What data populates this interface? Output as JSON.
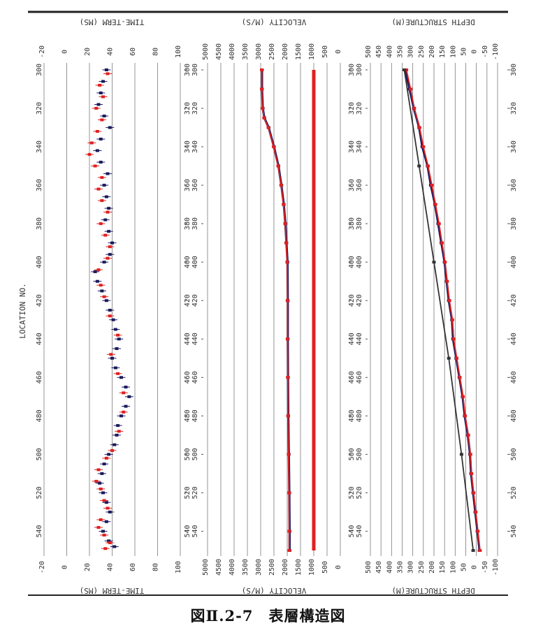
{
  "caption": "図Ⅱ.2-7　表層構造図",
  "chart_data": {
    "type": "multi-panel profile",
    "location_axis": {
      "label": "LOCATION NO.",
      "range": [
        300,
        550
      ],
      "ticks": [
        300,
        320,
        340,
        360,
        380,
        400,
        420,
        440,
        460,
        480,
        500,
        520,
        540
      ]
    },
    "panels": [
      {
        "id": "time_term",
        "title": "TIME-TERM (MS)",
        "range": [
          -20,
          100
        ],
        "ticks": [
          -20,
          0,
          20,
          40,
          60,
          80,
          100
        ],
        "series": [
          {
            "color": "#1a1a5e",
            "points": [
              [
                300,
                35
              ],
              [
                306,
                32
              ],
              [
                312,
                30
              ],
              [
                318,
                28
              ],
              [
                324,
                33
              ],
              [
                330,
                38
              ],
              [
                336,
                30
              ],
              [
                342,
                27
              ],
              [
                348,
                30
              ],
              [
                354,
                36
              ],
              [
                360,
                33
              ],
              [
                366,
                35
              ],
              [
                372,
                37
              ],
              [
                378,
                34
              ],
              [
                384,
                37
              ],
              [
                390,
                40
              ],
              [
                396,
                38
              ],
              [
                400,
                33
              ],
              [
                405,
                25
              ],
              [
                410,
                27
              ],
              [
                415,
                31
              ],
              [
                420,
                35
              ],
              [
                425,
                38
              ],
              [
                430,
                41
              ],
              [
                435,
                43
              ],
              [
                440,
                46
              ],
              [
                445,
                44
              ],
              [
                450,
                40
              ],
              [
                455,
                43
              ],
              [
                460,
                48
              ],
              [
                465,
                52
              ],
              [
                470,
                55
              ],
              [
                475,
                52
              ],
              [
                480,
                48
              ],
              [
                485,
                45
              ],
              [
                490,
                44
              ],
              [
                495,
                42
              ],
              [
                500,
                37
              ],
              [
                505,
                33
              ],
              [
                510,
                31
              ],
              [
                515,
                29
              ],
              [
                520,
                32
              ],
              [
                525,
                35
              ],
              [
                530,
                38
              ],
              [
                535,
                35
              ],
              [
                540,
                32
              ],
              [
                545,
                37
              ],
              [
                548,
                42
              ]
            ]
          },
          {
            "color": "#e02020",
            "points": [
              [
                302,
                36
              ],
              [
                308,
                29
              ],
              [
                314,
                32
              ],
              [
                320,
                26
              ],
              [
                326,
                31
              ],
              [
                332,
                27
              ],
              [
                338,
                22
              ],
              [
                344,
                20
              ],
              [
                350,
                25
              ],
              [
                356,
                31
              ],
              [
                362,
                28
              ],
              [
                368,
                31
              ],
              [
                374,
                36
              ],
              [
                380,
                30
              ],
              [
                386,
                34
              ],
              [
                392,
                38
              ],
              [
                398,
                36
              ],
              [
                404,
                28
              ],
              [
                412,
                30
              ],
              [
                418,
                33
              ],
              [
                428,
                38
              ],
              [
                438,
                45
              ],
              [
                448,
                39
              ],
              [
                458,
                45
              ],
              [
                468,
                50
              ],
              [
                478,
                50
              ],
              [
                488,
                46
              ],
              [
                498,
                40
              ],
              [
                502,
                35
              ],
              [
                508,
                28
              ],
              [
                514,
                26
              ],
              [
                518,
                30
              ],
              [
                524,
                33
              ],
              [
                528,
                36
              ],
              [
                534,
                30
              ],
              [
                538,
                28
              ],
              [
                542,
                33
              ],
              [
                546,
                38
              ],
              [
                549,
                34
              ]
            ]
          }
        ]
      },
      {
        "id": "velocity",
        "title": "VELOCITY (M/S)",
        "range": [
          5000,
          0
        ],
        "ticks": [
          5000,
          4500,
          4000,
          3500,
          3000,
          2500,
          2000,
          1500,
          1000,
          500,
          0
        ],
        "series": [
          {
            "color": "#1a1a5e",
            "points": [
              [
                300,
                2950
              ],
              [
                310,
                2950
              ],
              [
                320,
                2920
              ],
              [
                325,
                2860
              ],
              [
                330,
                2700
              ],
              [
                340,
                2500
              ],
              [
                350,
                2330
              ],
              [
                360,
                2220
              ],
              [
                370,
                2130
              ],
              [
                380,
                2070
              ],
              [
                390,
                2030
              ],
              [
                400,
                1990
              ],
              [
                420,
                1980
              ],
              [
                440,
                1980
              ],
              [
                460,
                1970
              ],
              [
                480,
                1960
              ],
              [
                500,
                1940
              ],
              [
                520,
                1920
              ],
              [
                540,
                1910
              ],
              [
                550,
                1910
              ]
            ]
          },
          {
            "color": "#e02020",
            "points": [
              [
                300,
                2960
              ],
              [
                310,
                2960
              ],
              [
                320,
                2930
              ],
              [
                325,
                2870
              ],
              [
                330,
                2710
              ],
              [
                340,
                2510
              ],
              [
                350,
                2340
              ],
              [
                360,
                2230
              ],
              [
                370,
                2140
              ],
              [
                380,
                2080
              ],
              [
                390,
                2040
              ],
              [
                400,
                2000
              ],
              [
                420,
                1990
              ],
              [
                440,
                1990
              ],
              [
                460,
                1980
              ],
              [
                480,
                1970
              ],
              [
                500,
                1950
              ],
              [
                520,
                1930
              ],
              [
                540,
                1920
              ],
              [
                550,
                1920
              ]
            ]
          },
          {
            "color": "#e02020",
            "points": [
              [
                300,
                1000
              ],
              [
                550,
                1000
              ]
            ]
          }
        ]
      },
      {
        "id": "depth_structure",
        "title": "DEPTH STRUCTURE(M)",
        "range": [
          500,
          -100
        ],
        "ticks": [
          500,
          450,
          400,
          350,
          300,
          250,
          200,
          150,
          100,
          50,
          0,
          -50,
          -100
        ],
        "series": [
          {
            "color": "#1a1a5e",
            "points": [
              [
                300,
                335
              ],
              [
                310,
                315
              ],
              [
                320,
                295
              ],
              [
                330,
                270
              ],
              [
                340,
                255
              ],
              [
                350,
                230
              ],
              [
                360,
                215
              ],
              [
                370,
                195
              ],
              [
                380,
                180
              ],
              [
                390,
                165
              ],
              [
                400,
                150
              ],
              [
                410,
                140
              ],
              [
                420,
                130
              ],
              [
                430,
                115
              ],
              [
                440,
                110
              ],
              [
                450,
                95
              ],
              [
                460,
                80
              ],
              [
                470,
                65
              ],
              [
                480,
                55
              ],
              [
                490,
                40
              ],
              [
                500,
                30
              ],
              [
                510,
                25
              ],
              [
                520,
                15
              ],
              [
                530,
                5
              ],
              [
                540,
                -5
              ],
              [
                550,
                -15
              ]
            ]
          },
          {
            "color": "#e02020",
            "points": [
              [
                300,
                330
              ],
              [
                310,
                310
              ],
              [
                320,
                293
              ],
              [
                330,
                268
              ],
              [
                340,
                250
              ],
              [
                350,
                228
              ],
              [
                360,
                210
              ],
              [
                370,
                193
              ],
              [
                380,
                176
              ],
              [
                390,
                162
              ],
              [
                400,
                148
              ],
              [
                410,
                138
              ],
              [
                420,
                127
              ],
              [
                430,
                113
              ],
              [
                440,
                107
              ],
              [
                450,
                93
              ],
              [
                460,
                78
              ],
              [
                470,
                63
              ],
              [
                480,
                53
              ],
              [
                490,
                38
              ],
              [
                500,
                28
              ],
              [
                510,
                23
              ],
              [
                520,
                13
              ],
              [
                530,
                3
              ],
              [
                540,
                -7
              ],
              [
                550,
                -17
              ]
            ]
          },
          {
            "color": "#333333",
            "points": [
              [
                300,
                340
              ],
              [
                350,
                270
              ],
              [
                400,
                200
              ],
              [
                450,
                130
              ],
              [
                500,
                70
              ],
              [
                550,
                15
              ]
            ]
          }
        ]
      }
    ]
  }
}
